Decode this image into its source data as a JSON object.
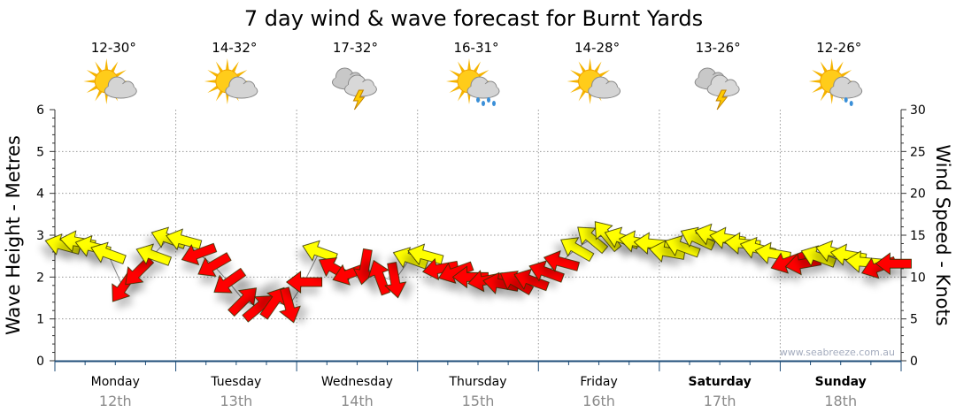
{
  "chart_data": {
    "type": "scatter",
    "title": "7 day wind & wave forecast for Burnt Yards",
    "ylabel_left": "Wave Height - Metres",
    "ylabel_right": "Wind Speed - Knots",
    "ylim_left": [
      0,
      6
    ],
    "ylim_right": [
      0,
      30
    ],
    "yticks_left": [
      "0",
      "1",
      "2",
      "3",
      "4",
      "5",
      "6"
    ],
    "yticks_right": [
      "0",
      "5",
      "10",
      "15",
      "20",
      "25",
      "30"
    ],
    "grid": true,
    "watermark": "www.seabreeze.com.au",
    "colors": {
      "Y": "#ffff00",
      "R": "#ff0000",
      "outline": "#333300",
      "axis": "#1f4e79"
    },
    "days": [
      {
        "name": "Monday",
        "date": "12th",
        "bold": false,
        "temp": "12-30°",
        "icon": "sun-cloud-icon",
        "speeds": [
          13.8,
          14.2,
          13.6,
          12.8,
          8.8,
          10.6,
          12.6,
          14.6
        ],
        "dirs": [
          165,
          170,
          165,
          160,
          235,
          225,
          160,
          160
        ],
        "colors": [
          "Y",
          "Y",
          "Y",
          "Y",
          "R",
          "R",
          "Y",
          "Y"
        ]
      },
      {
        "name": "Tuesday",
        "date": "13th",
        "bold": false,
        "temp": "14-32°",
        "icon": "sun-cloud-icon",
        "speeds": [
          14.4,
          12.8,
          11.4,
          9.4,
          7.2,
          6.4,
          7.0,
          6.6
        ],
        "dirs": [
          165,
          200,
          210,
          215,
          45,
          40,
          55,
          285
        ],
        "colors": [
          "Y",
          "R",
          "R",
          "R",
          "R",
          "R",
          "R",
          "R"
        ]
      },
      {
        "name": "Wednesday",
        "date": "14th",
        "bold": false,
        "temp": "17-32°",
        "icon": "storm-icon",
        "speeds": [
          9.4,
          13.0,
          11.0,
          10.4,
          11.2,
          10.0,
          9.6,
          12.2
        ],
        "dirs": [
          180,
          160,
          150,
          200,
          260,
          110,
          280,
          160
        ],
        "colors": [
          "R",
          "Y",
          "R",
          "R",
          "R",
          "R",
          "R",
          "Y"
        ]
      },
      {
        "name": "Thursday",
        "date": "15th",
        "bold": false,
        "temp": "16-31°",
        "icon": "sun-rain-icon",
        "speeds": [
          12.6,
          11.0,
          10.6,
          10.0,
          9.6,
          9.2,
          9.4,
          9.6
        ],
        "dirs": [
          165,
          190,
          200,
          180,
          190,
          170,
          150,
          160
        ],
        "colors": [
          "Y",
          "R",
          "R",
          "R",
          "R",
          "R",
          "R",
          "R"
        ]
      },
      {
        "name": "Friday",
        "date": "16th",
        "bold": false,
        "temp": "14-28°",
        "icon": "sun-cloud-icon",
        "speeds": [
          10.6,
          11.8,
          13.4,
          14.6,
          15.0,
          14.6,
          14.2,
          14.0
        ],
        "dirs": [
          160,
          165,
          150,
          140,
          130,
          160,
          170,
          175
        ],
        "colors": [
          "R",
          "R",
          "Y",
          "Y",
          "Y",
          "Y",
          "Y",
          "Y"
        ]
      },
      {
        "name": "Saturday",
        "date": "17th",
        "bold": true,
        "temp": "13-26°",
        "icon": "storm-icon",
        "speeds": [
          13.0,
          13.6,
          14.6,
          15.0,
          14.6,
          14.0,
          13.4,
          12.8
        ],
        "dirs": [
          170,
          160,
          155,
          165,
          170,
          175,
          165,
          170
        ],
        "colors": [
          "Y",
          "Y",
          "Y",
          "Y",
          "Y",
          "Y",
          "Y",
          "Y"
        ]
      },
      {
        "name": "Sunday",
        "date": "18th",
        "bold": true,
        "temp": "12-26°",
        "icon": "sun-showers-icon",
        "speeds": [
          11.8,
          11.6,
          12.4,
          13.0,
          12.6,
          11.8,
          11.2,
          11.6
        ],
        "dirs": [
          200,
          190,
          160,
          165,
          170,
          175,
          200,
          180
        ],
        "colors": [
          "R",
          "R",
          "Y",
          "Y",
          "Y",
          "Y",
          "R",
          "R"
        ]
      }
    ]
  }
}
